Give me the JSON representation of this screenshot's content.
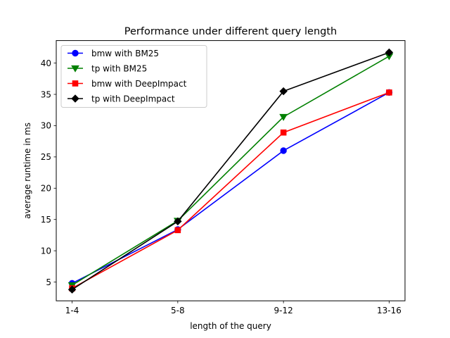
{
  "chart_data": {
    "type": "line",
    "title": "Performance under different query length",
    "xlabel": "length of the query",
    "ylabel": "average runtime in ms",
    "categories": [
      "1-4",
      "5-8",
      "9-12",
      "13-16"
    ],
    "ylim": [
      2.0,
      43.6
    ],
    "yticks": [
      5,
      10,
      15,
      20,
      25,
      30,
      35,
      40
    ],
    "grid": false,
    "legend": "top-left",
    "series": [
      {
        "name": "bmw with BM25",
        "color": "#0000ff",
        "marker": "circle",
        "values": [
          4.8,
          13.4,
          26.0,
          35.3
        ]
      },
      {
        "name": "tp with BM25",
        "color": "#008000",
        "marker": "triangle-down",
        "values": [
          4.5,
          14.8,
          31.4,
          41.1
        ]
      },
      {
        "name": "bmw with DeepImpact",
        "color": "#ff0000",
        "marker": "square",
        "values": [
          4.0,
          13.3,
          28.9,
          35.3
        ]
      },
      {
        "name": "tp with DeepImpact",
        "color": "#000000",
        "marker": "diamond",
        "values": [
          3.8,
          14.7,
          35.5,
          41.7
        ]
      }
    ]
  }
}
